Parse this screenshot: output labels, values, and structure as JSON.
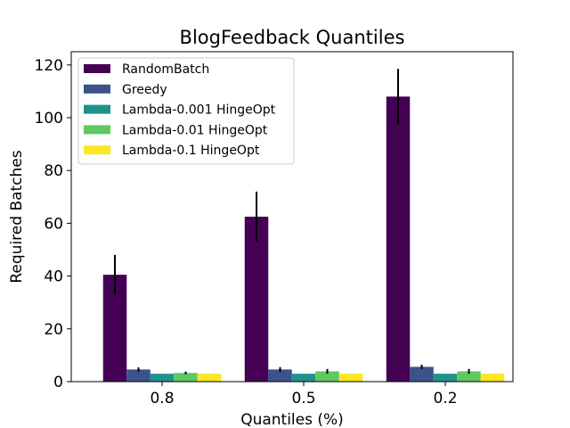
{
  "chart_data": {
    "type": "bar",
    "title": "BlogFeedback Quantiles",
    "xlabel": "Quantiles (%)",
    "ylabel": "Required Batches",
    "categories": [
      "0.8",
      "0.5",
      "0.2"
    ],
    "ylim": [
      0,
      120
    ],
    "yticks": [
      "0",
      "20",
      "40",
      "60",
      "80",
      "100",
      "120"
    ],
    "grid": false,
    "legend_position": "upper-left",
    "series": [
      {
        "name": "RandomBatch",
        "color": "#440154",
        "values": [
          40.5,
          62.5,
          108
        ],
        "errors": [
          7.5,
          9.5,
          10.5
        ]
      },
      {
        "name": "Greedy",
        "color": "#3b528b",
        "values": [
          4.6,
          4.6,
          5.6
        ],
        "errors": [
          0.8,
          0.9,
          0.8
        ]
      },
      {
        "name": "Lambda-0.001 HingeOpt",
        "color": "#21918c",
        "values": [
          3.0,
          3.0,
          3.0
        ],
        "errors": [
          0,
          0,
          0
        ]
      },
      {
        "name": "Lambda-0.01 HingeOpt",
        "color": "#5ec962",
        "values": [
          3.3,
          3.9,
          3.9
        ],
        "errors": [
          0.5,
          0.9,
          0.9
        ]
      },
      {
        "name": "Lambda-0.1 HingeOpt",
        "color": "#fde725",
        "values": [
          3.0,
          3.0,
          3.0
        ],
        "errors": [
          0,
          0,
          0
        ]
      }
    ]
  }
}
